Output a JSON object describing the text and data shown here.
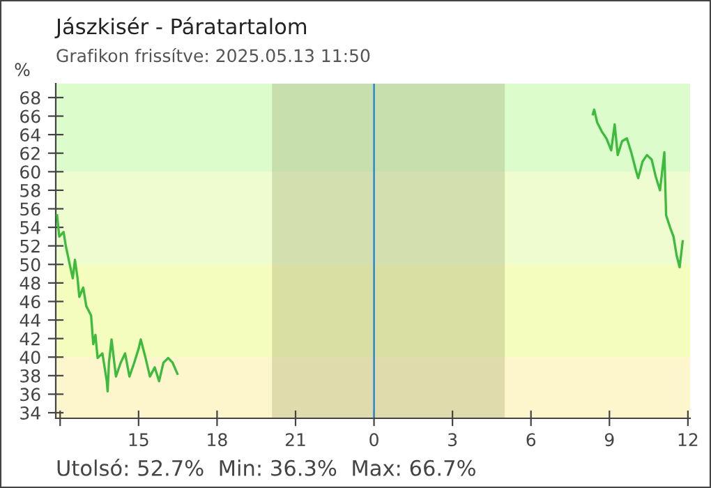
{
  "chart_data": {
    "type": "line",
    "title": "Jászkisér - Páratartalom",
    "subtitle": "Grafikon frissítve: 2025.05.13 11:50",
    "ylabel": "%",
    "annotations": [
      "Utolsó: 52.7%  Min: 36.3%  Max: 66.7%"
    ],
    "x": [
      "2025-05-12T11:53",
      "2025-05-12T11:58",
      "2025-05-12T12:08",
      "2025-05-12T12:13",
      "2025-05-12T12:22",
      "2025-05-12T12:29",
      "2025-05-12T12:34",
      "2025-05-12T12:40",
      "2025-05-12T12:44",
      "2025-05-12T12:53",
      "2025-05-12T13:00",
      "2025-05-12T13:11",
      "2025-05-12T13:16",
      "2025-05-12T13:21",
      "2025-05-12T13:26",
      "2025-05-12T13:37",
      "2025-05-12T13:47",
      "2025-05-12T13:49",
      "2025-05-12T13:52",
      "2025-05-12T13:58",
      "2025-05-12T14:08",
      "2025-05-12T14:19",
      "2025-05-12T14:29",
      "2025-05-12T14:39",
      "2025-05-12T14:50",
      "2025-05-12T15:00",
      "2025-05-12T15:05",
      "2025-05-12T15:16",
      "2025-05-12T15:26",
      "2025-05-12T15:37",
      "2025-05-12T15:47",
      "2025-05-12T15:57",
      "2025-05-12T16:08",
      "2025-05-12T16:18",
      "2025-05-12T16:29",
      "2025-05-13T00:00",
      "2025-05-13T08:22",
      "2025-05-13T08:25",
      "2025-05-13T08:32",
      "2025-05-13T08:43",
      "2025-05-13T08:53",
      "2025-05-13T09:04",
      "2025-05-13T09:12",
      "2025-05-13T09:19",
      "2025-05-13T09:29",
      "2025-05-13T09:40",
      "2025-05-13T09:50",
      "2025-05-13T10:01",
      "2025-05-13T10:06",
      "2025-05-13T10:16",
      "2025-05-13T10:26",
      "2025-05-13T10:37",
      "2025-05-13T10:46",
      "2025-05-13T10:56",
      "2025-05-13T11:06",
      "2025-05-13T11:10",
      "2025-05-13T11:19",
      "2025-05-13T11:27",
      "2025-05-13T11:34",
      "2025-05-13T11:41",
      "2025-05-13T11:48"
    ],
    "series": [
      {
        "color": "#3dbb3d",
        "values": [
          55.3,
          53.0,
          53.5,
          52.0,
          50.0,
          48.5,
          50.5,
          48.5,
          46.5,
          47.5,
          45.5,
          44.5,
          41.4,
          42.4,
          39.9,
          40.4,
          37.4,
          36.3,
          39.4,
          41.9,
          37.9,
          39.4,
          40.4,
          37.9,
          39.4,
          40.9,
          41.9,
          39.9,
          37.9,
          38.9,
          37.4,
          39.4,
          39.9,
          39.4,
          38.2,
          null,
          66.2,
          66.7,
          65.3,
          64.3,
          63.6,
          62.3,
          65.1,
          61.8,
          63.3,
          63.6,
          62.1,
          60.1,
          59.3,
          61.1,
          61.8,
          61.3,
          59.5,
          58.0,
          62.1,
          55.3,
          54.0,
          53.0,
          51.0,
          49.7,
          52.5
        ]
      }
    ],
    "xlim": [
      "2025-05-12T11:50",
      "2025-05-13T12:05"
    ],
    "ylim": [
      33.4,
      69.5
    ],
    "xticks": [
      {
        "value": "2025-05-12T12:00",
        "label": null
      },
      {
        "value": "2025-05-12T15:00",
        "label": "15"
      },
      {
        "value": "2025-05-12T18:00",
        "label": "18"
      },
      {
        "value": "2025-05-12T21:00",
        "label": "21"
      },
      {
        "value": "2025-05-13T00:00",
        "label": "0"
      },
      {
        "value": "2025-05-13T03:00",
        "label": "3"
      },
      {
        "value": "2025-05-13T06:00",
        "label": "6"
      },
      {
        "value": "2025-05-13T09:00",
        "label": "9"
      },
      {
        "value": "2025-05-13T12:00",
        "label": "12"
      }
    ],
    "yticks": [
      34,
      36,
      38,
      40,
      42,
      44,
      46,
      48,
      50,
      52,
      54,
      56,
      58,
      60,
      62,
      64,
      66,
      68
    ],
    "bands": [
      {
        "axis": "y",
        "from": 33.4,
        "to": 40,
        "color": "#fdf6cc"
      },
      {
        "axis": "y",
        "from": 40,
        "to": 50,
        "color": "#f4fcbe"
      },
      {
        "axis": "y",
        "from": 50,
        "to": 60,
        "color": "#eefcd0"
      },
      {
        "axis": "y",
        "from": 60,
        "to": 69.5,
        "color": "#dcfccc"
      },
      {
        "axis": "x",
        "from": "2025-05-12T20:06",
        "to": "2025-05-13T05:00",
        "color": "#7a7a40"
      }
    ],
    "ref_lines": [
      {
        "axis": "x",
        "value": "2025-05-13T00:00",
        "color": "#3a8fd0"
      }
    ],
    "grid": false,
    "legend": false,
    "marker": "none",
    "line_style": "solid"
  }
}
